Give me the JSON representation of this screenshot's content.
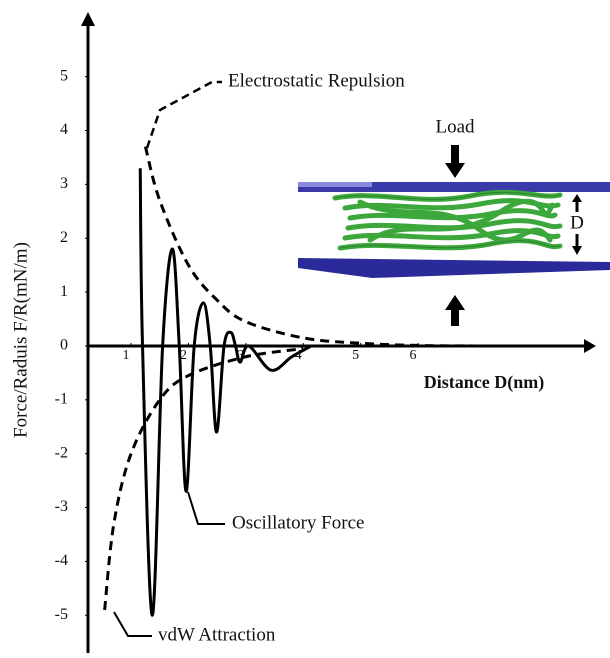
{
  "chart_data": {
    "type": "line",
    "ylabel": "Force/Raduis F/R(mN/m)",
    "xlabel": "Distance D(nm)",
    "xlim": [
      0.25,
      9.1
    ],
    "ylim": [
      -5.7,
      6.2
    ],
    "xticks": [
      1,
      2,
      3,
      4,
      5,
      6
    ],
    "yticks": [
      -5,
      -4,
      -3,
      -2,
      -1,
      0,
      1,
      2,
      3,
      4,
      5
    ],
    "series": [
      {
        "name": "Electrostatic Repulsion",
        "color": "#000000",
        "dash": true,
        "x": [
          1.25,
          1.5,
          2,
          2.5,
          3,
          4,
          5,
          6,
          7
        ],
        "values": [
          3.7,
          2.7,
          1.5,
          0.85,
          0.45,
          0.15,
          0.05,
          0.01,
          0
        ]
      },
      {
        "name": "Oscillatory Force",
        "color": "#000000",
        "dash": false,
        "x": [
          1.16,
          1.2,
          1.37,
          1.55,
          1.72,
          1.84,
          1.96,
          2.1,
          2.26,
          2.38,
          2.49,
          2.62,
          2.74,
          2.82,
          2.9,
          3.05,
          3.44,
          3.8,
          4.14
        ],
        "values": [
          3.3,
          0,
          -5,
          0,
          1.8,
          0,
          -2.7,
          0,
          0.8,
          0,
          -1.6,
          0,
          0.25,
          0,
          -0.3,
          0,
          -0.45,
          -0.2,
          0
        ]
      },
      {
        "name": "vdW Attraction",
        "color": "#000000",
        "dash": true,
        "x": [
          0.54,
          0.7,
          1,
          1.5,
          2,
          3,
          4
        ],
        "values": [
          -4.9,
          -3.3,
          -2,
          -1,
          -0.55,
          -0.2,
          -0.05
        ]
      }
    ],
    "annotations": [
      "Load",
      "D"
    ]
  }
}
